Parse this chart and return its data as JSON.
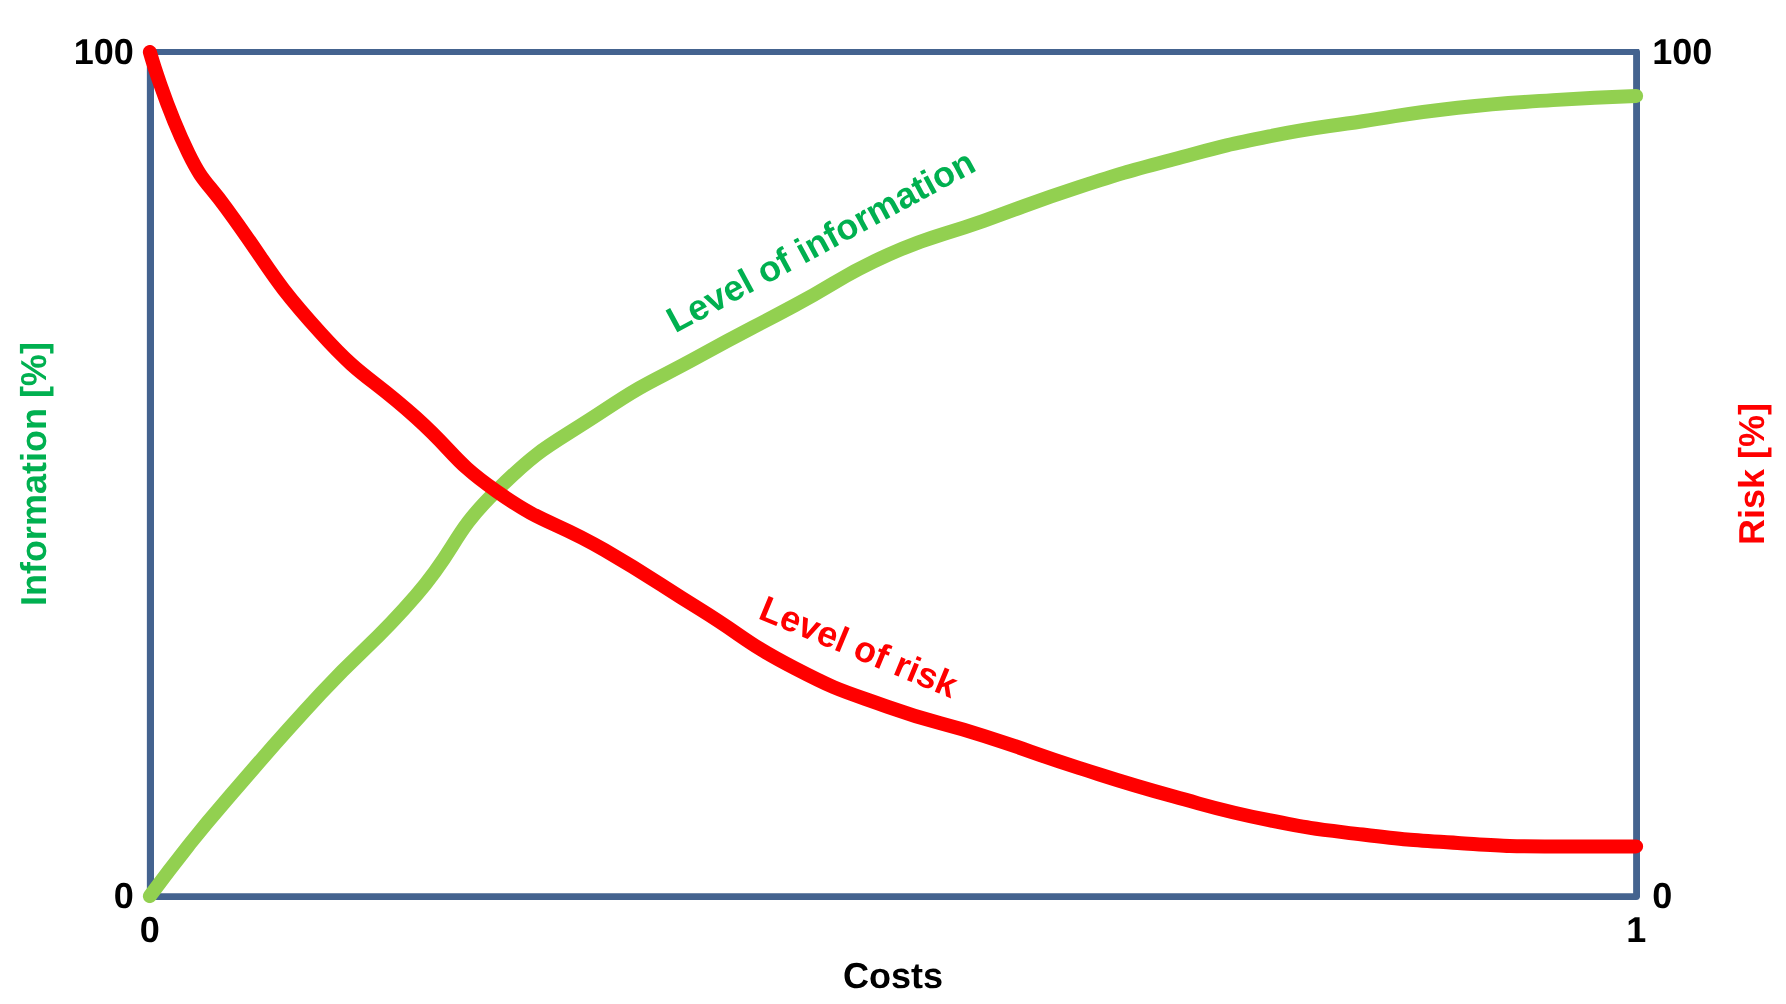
{
  "chart_data": {
    "type": "line",
    "xlabel": "Costs",
    "ylabel": "Information [%]",
    "y2label": "Risk [%]",
    "xlim": [
      0,
      1
    ],
    "xticks": [
      0,
      1
    ],
    "ylim": [
      0,
      100
    ],
    "yticks": [
      0,
      100
    ],
    "y2lim": [
      0,
      100
    ],
    "y2ticks": [
      0,
      100
    ],
    "grid": false,
    "marker": "none",
    "line_style": "solid",
    "x": [
      0,
      0.026,
      0.051,
      0.115,
      0.179,
      0.233,
      0.306,
      0.37,
      0.434,
      0.497,
      0.561,
      0.625,
      0.689,
      0.753,
      0.816,
      0.88,
      0.944,
      1
    ],
    "series": [
      {
        "name": "Level of information",
        "color": "#92d050",
        "values": [
          0,
          6,
          11.3,
          24,
          35.6,
          48,
          57.6,
          64,
          70,
          76,
          80,
          84,
          87.3,
          90,
          91.8,
          93.4,
          94.3,
          94.8
        ]
      },
      {
        "name": "Level of risk",
        "color": "#ff0000",
        "axis": "y2",
        "values": [
          100,
          88,
          81.6,
          66.7,
          56.7,
          48,
          41,
          34,
          27,
          22.4,
          19,
          15.2,
          11.8,
          9,
          7.3,
          6.3,
          5.9,
          5.9
        ]
      }
    ],
    "legend": false
  }
}
